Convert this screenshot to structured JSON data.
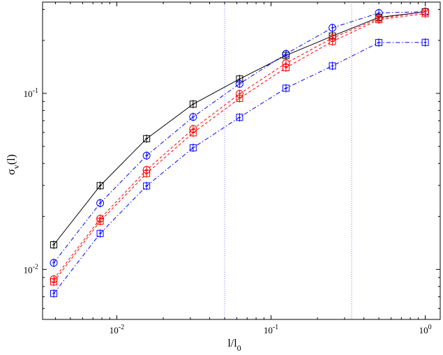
{
  "chart_data": {
    "type": "line",
    "xscale": "log",
    "yscale": "log",
    "xlim": [
      0.0033,
      1.25
    ],
    "ylim": [
      0.0052,
      0.33
    ],
    "xlabel": {
      "main": "l/l",
      "sub": "0"
    },
    "ylabel": {
      "main": "σ",
      "sub": "v",
      "suffix": "(l)"
    },
    "xticks": [
      {
        "value": 0.01,
        "base": "10",
        "exp": "-2"
      },
      {
        "value": 0.1,
        "base": "10",
        "exp": "-1"
      },
      {
        "value": 1,
        "base": "10",
        "exp": "0"
      }
    ],
    "yticks": [
      {
        "value": 0.01,
        "base": "10",
        "exp": "-2"
      },
      {
        "value": 0.1,
        "base": "10",
        "exp": "-1"
      }
    ],
    "vlines": [
      0.05,
      0.333
    ],
    "x": [
      0.0039,
      0.0078,
      0.0156,
      0.03125,
      0.0625,
      0.125,
      0.25,
      0.5,
      1.0
    ],
    "series": [
      {
        "name": "black-squares",
        "color": "#000000",
        "dash": "solid",
        "marker": "square-plus",
        "values": [
          0.0138,
          0.0299,
          0.0553,
          0.0869,
          0.1207,
          0.1643,
          0.2117,
          0.2702,
          0.2904
        ]
      },
      {
        "name": "blue-circles",
        "color": "#0000ff",
        "dash": "dashdot",
        "marker": "circle-plus",
        "values": [
          0.0109,
          0.0238,
          0.0443,
          0.0735,
          0.1133,
          0.1677,
          0.2358,
          0.2862,
          0.2914
        ]
      },
      {
        "name": "red-circles",
        "color": "#ff0000",
        "dash": "dashed",
        "marker": "circle-plus",
        "values": [
          0.0088,
          0.0194,
          0.0368,
          0.0628,
          0.0994,
          0.1483,
          0.2062,
          0.2662,
          0.2904
        ]
      },
      {
        "name": "red-squares",
        "color": "#ff0000",
        "dash": "dashed",
        "marker": "square-plus",
        "values": [
          0.0085,
          0.0188,
          0.0351,
          0.0597,
          0.0937,
          0.14,
          0.1972,
          0.2621,
          0.2839
        ]
      },
      {
        "name": "blue-squares",
        "color": "#0000ff",
        "dash": "dashdot",
        "marker": "square-plus",
        "values": [
          0.0073,
          0.016,
          0.0298,
          0.0491,
          0.0731,
          0.107,
          0.1433,
          0.1943,
          0.1948
        ]
      }
    ]
  }
}
